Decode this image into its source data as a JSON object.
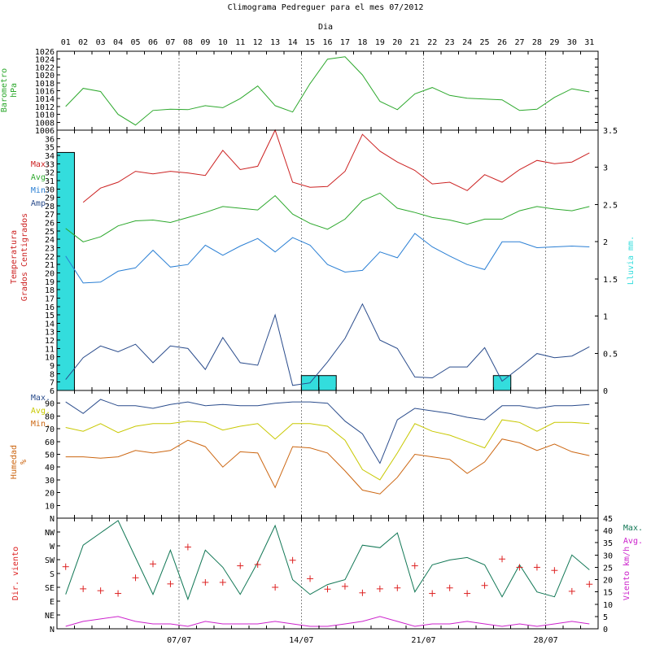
{
  "title": "Climograma Pedreguer para el mes 07/2012",
  "day_header": "Dia",
  "days": [
    "01",
    "02",
    "03",
    "04",
    "05",
    "06",
    "07",
    "08",
    "09",
    "10",
    "11",
    "12",
    "13",
    "14",
    "15",
    "16",
    "17",
    "18",
    "19",
    "20",
    "21",
    "22",
    "23",
    "24",
    "25",
    "26",
    "27",
    "28",
    "29",
    "30",
    "31"
  ],
  "week_labels": [
    {
      "text": "07/07",
      "day": 7
    },
    {
      "text": "14/07",
      "day": 14
    },
    {
      "text": "21/07",
      "day": 21
    },
    {
      "text": "28/07",
      "day": 28
    }
  ],
  "colors": {
    "pressure": "#2ca82c",
    "max": "#cc2222",
    "avg": "#2ca82c",
    "min": "#2a7fd4",
    "amp": "#2a4c8c",
    "rain": "#33dddd",
    "hum_max": "#2a4c8c",
    "hum_avg": "#c8c800",
    "hum_min": "#cc6611",
    "wind_max": "#117755",
    "wind_avg": "#cc22cc",
    "wind_dir": "#dd2222"
  },
  "chart_data": [
    {
      "type": "line",
      "title": "Barometro hPa",
      "ylabel_lines": [
        "Barometro",
        "hPa"
      ],
      "ylim": [
        1006,
        1026
      ],
      "yticks": [
        1006,
        1008,
        1010,
        1012,
        1014,
        1016,
        1018,
        1020,
        1022,
        1024,
        1026
      ],
      "series": [
        {
          "name": "",
          "color_key": "pressure",
          "values": [
            1012,
            1016.6,
            1015.8,
            1010,
            1007.3,
            1011,
            1011.3,
            1011.2,
            1012.2,
            1011.7,
            1014,
            1017.2,
            1012.2,
            1010.6,
            1017.8,
            1024,
            1024.6,
            1020,
            1013.3,
            1011.2,
            1015.2,
            1016.8,
            1014.8,
            1014.1,
            1013.9,
            1013.7,
            1011,
            1011.3,
            1014.3,
            1016.5,
            1015.7
          ]
        }
      ]
    },
    {
      "type": "line+bar",
      "title": "Temperatura Grados Centigrados",
      "ylabel_lines": [
        "Temperatura",
        "Grados Centigrados"
      ],
      "ylim": [
        6,
        37
      ],
      "yticks": [
        6,
        7,
        8,
        9,
        10,
        11,
        12,
        13,
        14,
        15,
        16,
        17,
        18,
        19,
        20,
        21,
        22,
        23,
        24,
        25,
        26,
        27,
        28,
        29,
        30,
        31,
        32,
        33,
        34,
        35,
        36
      ],
      "legend": [
        {
          "text": "Max.",
          "color_key": "max"
        },
        {
          "text": "Avg.",
          "color_key": "avg"
        },
        {
          "text": "Min.",
          "color_key": "min"
        },
        {
          "text": "Amp.",
          "color_key": "amp"
        }
      ],
      "series": [
        {
          "name": "Max.",
          "color_key": "max",
          "values": [
            29.1,
            28.4,
            30.1,
            30.8,
            32.1,
            31.8,
            32.1,
            31.9,
            31.6,
            34.6,
            32.3,
            32.7,
            37,
            30.8,
            30.2,
            30.3,
            32.1,
            36.5,
            34.5,
            33.2,
            32.2,
            30.6,
            30.8,
            29.8,
            31.7,
            30.8,
            32.3,
            33.4,
            33,
            33.2,
            34.3
          ],
          "connect_from": 1
        },
        {
          "name": "Avg.",
          "color_key": "avg",
          "values": [
            25.3,
            23.7,
            24.3,
            25.6,
            26.2,
            26.3,
            26,
            26.6,
            27.2,
            27.9,
            27.7,
            27.5,
            29.2,
            27,
            25.9,
            25.2,
            26.4,
            28.6,
            29.5,
            27.7,
            27.2,
            26.6,
            26.3,
            25.8,
            26.4,
            26.4,
            27.4,
            27.9,
            27.6,
            27.4,
            27.9
          ]
        },
        {
          "name": "Min.",
          "color_key": "min",
          "values": [
            22,
            18.8,
            18.9,
            20.2,
            20.6,
            22.7,
            20.7,
            21,
            23.3,
            22.1,
            23.2,
            24.1,
            22.5,
            24.2,
            23.3,
            21,
            20.1,
            20.3,
            22.5,
            21.8,
            24.7,
            23.1,
            22,
            21,
            20.4,
            23.7,
            23.7,
            23,
            23.1,
            23.2,
            23.1
          ]
        },
        {
          "name": "Amp.",
          "color_key": "amp",
          "values": [
            7.3,
            9.9,
            11.3,
            10.6,
            11.5,
            9.3,
            11.3,
            11,
            8.5,
            12.3,
            9.3,
            9,
            15,
            6.6,
            6.9,
            9.4,
            12.2,
            16.3,
            12,
            11,
            7.6,
            7.5,
            8.8,
            8.8,
            11.1,
            7.1,
            8.7,
            10.4,
            9.9,
            10.1,
            11.2
          ]
        }
      ],
      "rain": {
        "ylabel": "Lluvia mm.",
        "ylim": [
          0,
          3.5
        ],
        "yticks": [
          0,
          0.5,
          1,
          1.5,
          2,
          2.5,
          3,
          3.5
        ],
        "values": [
          3.2,
          0,
          0,
          0,
          0,
          0,
          0,
          0,
          0,
          0,
          0,
          0,
          0,
          0,
          0.2,
          0.2,
          0,
          0,
          0,
          0,
          0,
          0,
          0,
          0,
          0,
          0.2,
          0,
          0,
          0,
          0,
          0
        ]
      }
    },
    {
      "type": "line",
      "title": "Humedad %",
      "ylabel_lines": [
        "Humedad",
        "%"
      ],
      "ylim": [
        0,
        100
      ],
      "yticks": [
        10,
        20,
        30,
        40,
        50,
        60,
        70,
        80,
        90
      ],
      "legend": [
        {
          "text": "Max.",
          "color_key": "hum_max"
        },
        {
          "text": "Avg.",
          "color_key": "hum_avg"
        },
        {
          "text": "Min.",
          "color_key": "hum_min"
        }
      ],
      "series": [
        {
          "name": "Max.",
          "color_key": "hum_max",
          "values": [
            91,
            82,
            93,
            88,
            88,
            86,
            89,
            91,
            88,
            89,
            88,
            88,
            90,
            91,
            91,
            90,
            76,
            66,
            43,
            77,
            86,
            84,
            82,
            79,
            77,
            88,
            88,
            86,
            88,
            88,
            89
          ]
        },
        {
          "name": "Avg.",
          "color_key": "hum_avg",
          "values": [
            71,
            68,
            74,
            67,
            72,
            74,
            74,
            76,
            75,
            69,
            72,
            74,
            62,
            74,
            74,
            72,
            61,
            38,
            30,
            51,
            74,
            68,
            65,
            60,
            55,
            77,
            75,
            68,
            75,
            75,
            74
          ]
        },
        {
          "name": "Min.",
          "color_key": "hum_min",
          "values": [
            48,
            48,
            47,
            48,
            53,
            51,
            53,
            61,
            56,
            40,
            52,
            51,
            24,
            56,
            55,
            51,
            37,
            22,
            19,
            32,
            50,
            48,
            46,
            35,
            44,
            62,
            59,
            53,
            58,
            52,
            49
          ]
        }
      ]
    },
    {
      "type": "line+scatter",
      "title": "Dir. viento / Viento km/h",
      "ylabel": "Dir. viento",
      "ylabel_right": "Viento km/h",
      "dir_ticks": [
        "N",
        "NE",
        "E",
        "SE",
        "S",
        "SW",
        "W",
        "NW",
        "N"
      ],
      "ylim_right": [
        0,
        45
      ],
      "yticks_right": [
        0,
        5,
        10,
        15,
        20,
        25,
        30,
        35,
        40,
        45
      ],
      "legend": [
        {
          "text": "Max.",
          "color_key": "wind_max"
        },
        {
          "text": "Avg.",
          "color_key": "wind_avg"
        }
      ],
      "series": [
        {
          "name": "Max.",
          "color_key": "wind_max",
          "values": [
            14,
            34,
            39,
            44,
            29,
            14,
            32,
            12,
            32,
            25,
            14,
            27,
            42,
            20,
            14,
            18,
            20,
            34,
            33,
            39,
            15,
            26,
            28,
            29,
            26,
            13,
            26,
            15,
            13,
            30,
            24
          ]
        },
        {
          "name": "Avg.",
          "color_key": "wind_avg",
          "values": [
            1,
            3,
            4,
            5,
            3,
            2,
            2,
            1,
            3,
            2,
            2,
            2,
            3,
            2,
            1,
            1,
            2,
            3,
            5,
            3,
            1,
            2,
            2,
            3,
            2,
            1,
            2,
            1,
            2,
            3,
            2
          ]
        },
        {
          "name": "Dir.",
          "color_key": "wind_dir",
          "marker": "+",
          "values": [
            202,
            130,
            124,
            115,
            166,
            211,
            146,
            266,
            151,
            151,
            205,
            209,
            135,
            223,
            163,
            129,
            138,
            117,
            130,
            133,
            205,
            115,
            133,
            115,
            141,
            227,
            200,
            200,
            190,
            122,
            145
          ]
        }
      ]
    }
  ]
}
